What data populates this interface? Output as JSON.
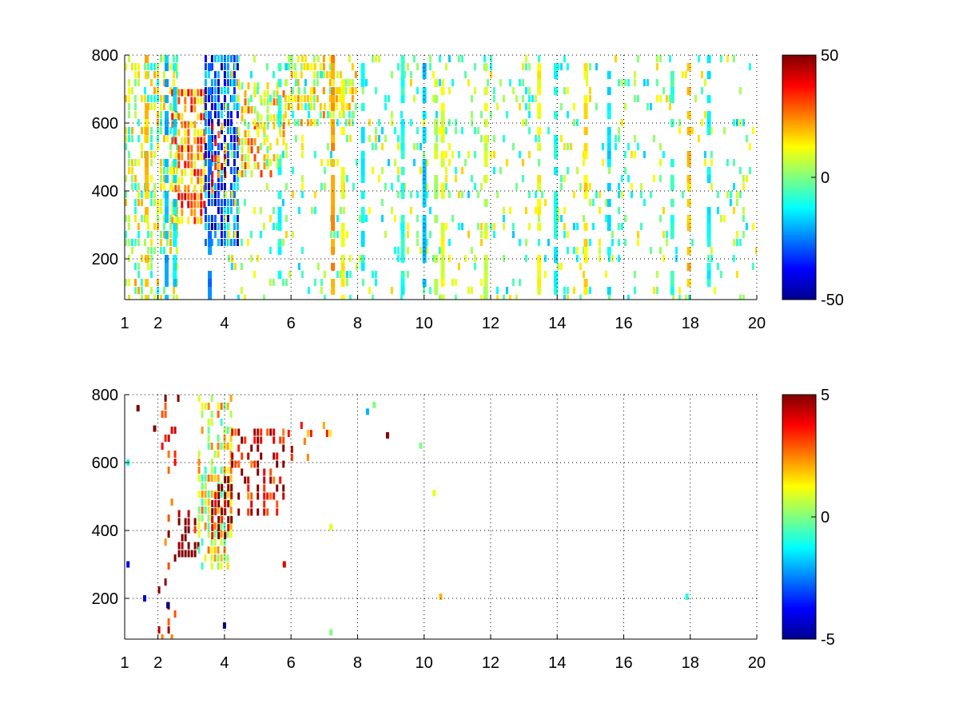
{
  "chart_data": [
    {
      "type": "heatmap",
      "title": "",
      "xlabel": "",
      "ylabel": "",
      "xlim": [
        1,
        20
      ],
      "ylim": [
        80,
        800
      ],
      "x_ticks": [
        1,
        2,
        4,
        6,
        8,
        10,
        12,
        14,
        16,
        18,
        20
      ],
      "y_ticks": [
        200,
        400,
        600,
        800
      ],
      "grid": true,
      "colormap": "jet",
      "clim": [
        -50,
        50
      ],
      "colorbar": {
        "placement": "right",
        "ticks": [
          50,
          0,
          -50
        ]
      },
      "regions": [
        {
          "x": [
            1.0,
            2.6
          ],
          "y": [
            80,
            800
          ],
          "value": 5,
          "density": 0.45
        },
        {
          "x": [
            2.4,
            3.4
          ],
          "y": [
            300,
            700
          ],
          "value": 25,
          "density": 0.7
        },
        {
          "x": [
            3.4,
            4.4
          ],
          "y": [
            250,
            800
          ],
          "value": -30,
          "density": 0.75
        },
        {
          "x": [
            3.6,
            4.0
          ],
          "y": [
            400,
            600
          ],
          "value": 30,
          "density": 0.35
        },
        {
          "x": [
            4.4,
            5.8
          ],
          "y": [
            450,
            720
          ],
          "value": 15,
          "density": 0.55
        },
        {
          "x": [
            5.8,
            8.0
          ],
          "y": [
            600,
            800
          ],
          "value": 10,
          "density": 0.45
        },
        {
          "x": [
            4.0,
            20.0
          ],
          "y": [
            80,
            800
          ],
          "value": 0,
          "density": 0.13
        }
      ],
      "stripes": [
        {
          "x": 1.6,
          "value": 18
        },
        {
          "x": 2.2,
          "value": -20
        },
        {
          "x": 2.45,
          "value": -15
        },
        {
          "x": 3.5,
          "value": -25
        },
        {
          "x": 5.6,
          "value": -10
        },
        {
          "x": 7.2,
          "value": 22
        },
        {
          "x": 7.5,
          "value": 12
        },
        {
          "x": 8.1,
          "value": -12
        },
        {
          "x": 9.3,
          "value": -10
        },
        {
          "x": 9.95,
          "value": -18
        },
        {
          "x": 10.3,
          "value": 6
        },
        {
          "x": 10.5,
          "value": 10
        },
        {
          "x": 11.8,
          "value": 8
        },
        {
          "x": 13.4,
          "value": 12
        },
        {
          "x": 13.9,
          "value": -12
        },
        {
          "x": 14.8,
          "value": 15
        },
        {
          "x": 15.5,
          "value": -15
        },
        {
          "x": 17.4,
          "value": -8
        },
        {
          "x": 17.9,
          "value": 18
        },
        {
          "x": 18.5,
          "value": -12
        }
      ]
    },
    {
      "type": "heatmap",
      "title": "",
      "xlabel": "",
      "ylabel": "",
      "xlim": [
        1,
        20
      ],
      "ylim": [
        80,
        800
      ],
      "x_ticks": [
        1,
        2,
        4,
        6,
        8,
        10,
        12,
        14,
        16,
        18,
        20
      ],
      "y_ticks": [
        200,
        400,
        600,
        800
      ],
      "grid": true,
      "colormap": "jet",
      "clim": [
        -5,
        5
      ],
      "colorbar": {
        "placement": "right",
        "ticks": [
          5,
          0,
          -5
        ]
      },
      "regions": [
        {
          "x": [
            2.0,
            2.6
          ],
          "y": [
            80,
            800
          ],
          "value": 4,
          "density": 0.12
        },
        {
          "x": [
            2.6,
            3.2
          ],
          "y": [
            320,
            460
          ],
          "value": 5,
          "density": 0.5
        },
        {
          "x": [
            3.2,
            4.2
          ],
          "y": [
            300,
            800
          ],
          "value": 1,
          "density": 0.55
        },
        {
          "x": [
            3.6,
            4.2
          ],
          "y": [
            380,
            560
          ],
          "value": 5,
          "density": 0.6
        },
        {
          "x": [
            4.2,
            5.8
          ],
          "y": [
            450,
            700
          ],
          "value": 4,
          "density": 0.35
        },
        {
          "x": [
            5.8,
            7.2
          ],
          "y": [
            620,
            720
          ],
          "value": 3,
          "density": 0.15
        }
      ],
      "points": [
        {
          "x": 1.1,
          "y": 600,
          "value": -1
        },
        {
          "x": 1.1,
          "y": 300,
          "value": -4
        },
        {
          "x": 1.4,
          "y": 760,
          "value": 5
        },
        {
          "x": 1.6,
          "y": 200,
          "value": -4
        },
        {
          "x": 1.9,
          "y": 700,
          "value": 5
        },
        {
          "x": 2.3,
          "y": 180,
          "value": -5
        },
        {
          "x": 4.0,
          "y": 120,
          "value": -5
        },
        {
          "x": 5.8,
          "y": 300,
          "value": 4
        },
        {
          "x": 7.2,
          "y": 100,
          "value": 0
        },
        {
          "x": 7.2,
          "y": 410,
          "value": 1
        },
        {
          "x": 8.3,
          "y": 750,
          "value": -2
        },
        {
          "x": 8.5,
          "y": 770,
          "value": 0
        },
        {
          "x": 8.9,
          "y": 680,
          "value": 5
        },
        {
          "x": 9.9,
          "y": 650,
          "value": 0
        },
        {
          "x": 10.3,
          "y": 510,
          "value": 1
        },
        {
          "x": 10.5,
          "y": 205,
          "value": 2
        },
        {
          "x": 17.9,
          "y": 205,
          "value": -1
        }
      ]
    }
  ]
}
